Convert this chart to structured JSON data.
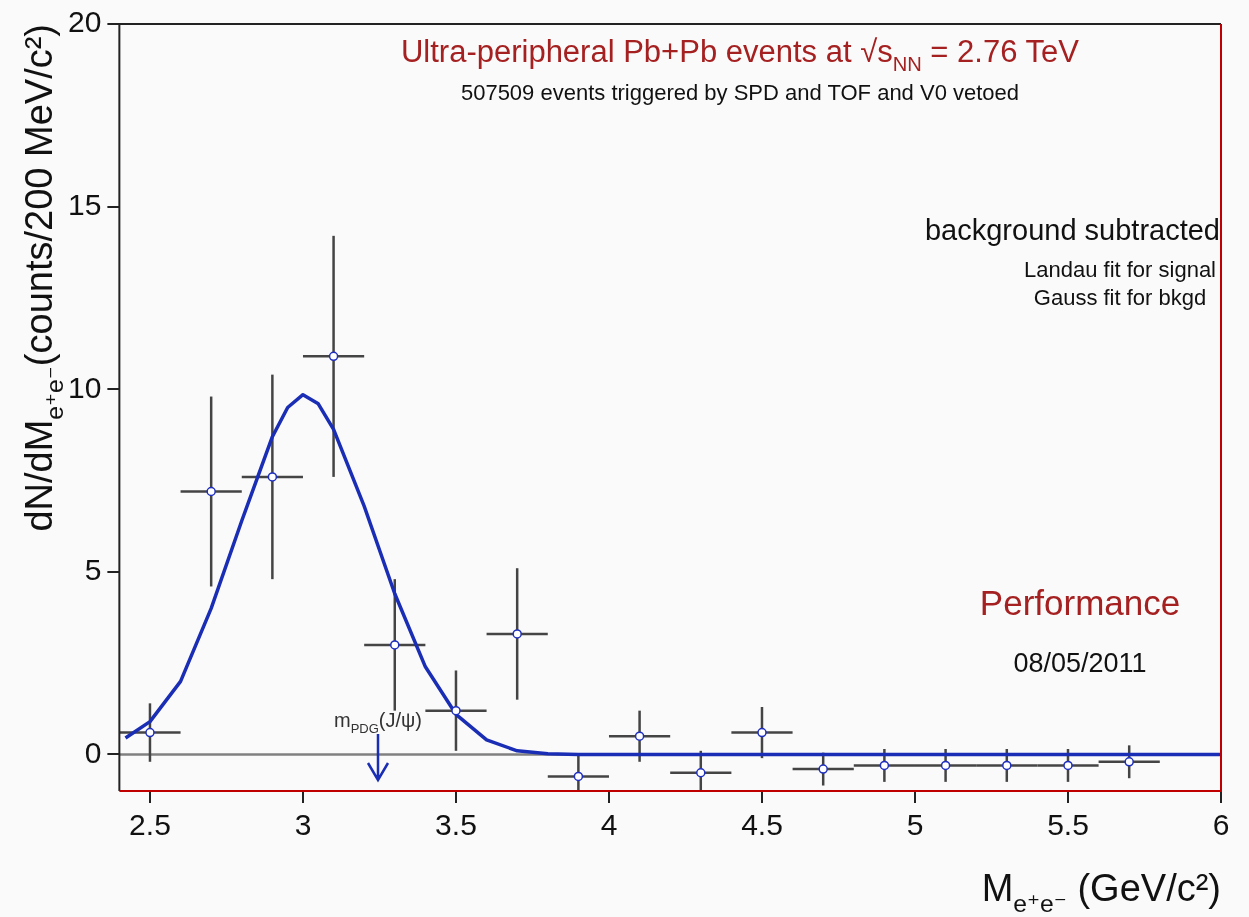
{
  "chart_data": {
    "type": "scatter",
    "title": "Ultra-peripheral Pb+Pb events at √s$_{NN}$ = 2.76 TeV",
    "subtitle": "507509 events triggered by SPD and TOF and V0 vetoed",
    "xlabel": "M$_{e⁺e⁻}$ (GeV/c²)",
    "ylabel": "dN/dM$_{e⁺e⁻}$(counts/200 MeV/c²)",
    "annotations": [
      "background subtracted",
      "Landau fit for signal",
      "Gauss fit for bkgd",
      "Performance",
      "08/05/2011",
      "m$_{PDG}$(J/ψ)"
    ],
    "x": [
      2.5,
      2.7,
      2.9,
      3.1,
      3.3,
      3.5,
      3.7,
      3.9,
      4.1,
      4.3,
      4.5,
      4.7,
      4.9,
      5.1,
      5.3,
      5.5,
      5.7
    ],
    "series": [
      {
        "type": "scatter",
        "color": "#1f2fbf",
        "marker": "circle",
        "values": [
          0.6,
          7.2,
          7.6,
          10.9,
          3.0,
          1.2,
          3.3,
          -0.6,
          0.5,
          -0.5,
          0.6,
          -0.4,
          -0.3,
          -0.3,
          -0.3,
          -0.3,
          -0.2
        ],
        "errors": [
          0.8,
          2.6,
          2.8,
          3.3,
          1.8,
          1.1,
          1.8,
          [
            -1,
            0
          ],
          0.7,
          [
            -1,
            0.1
          ],
          0.7,
          0.45,
          0.45,
          0.45,
          0.45,
          0.45,
          0.45
        ],
        "xerrors": [
          0.1,
          0.1,
          0.1,
          0.1,
          0.1,
          0.1,
          0.1,
          0.1,
          0.1,
          0.1,
          0.1,
          0.1,
          0.1,
          0.1,
          0.1,
          0.1,
          0.1
        ]
      },
      {
        "type": "line",
        "color": "#1a2db5",
        "marker": "none",
        "x": [
          2.42,
          2.5,
          2.6,
          2.7,
          2.8,
          2.9,
          2.95,
          3.0,
          3.05,
          3.1,
          3.2,
          3.3,
          3.4,
          3.5,
          3.6,
          3.7,
          3.8,
          3.9,
          6.0
        ],
        "values": [
          0.45,
          0.9,
          2.0,
          4.0,
          6.4,
          8.7,
          9.5,
          9.85,
          9.6,
          8.9,
          6.8,
          4.4,
          2.4,
          1.1,
          0.4,
          0.1,
          0.02,
          0,
          0
        ]
      }
    ],
    "xlim": [
      2.4,
      6
    ],
    "xticks": [
      2.5,
      3,
      3.5,
      4,
      4.5,
      5,
      5.5,
      6
    ],
    "ylim": [
      -1,
      20
    ],
    "yticks": [
      0,
      5,
      10,
      15,
      20
    ],
    "ref_lines": [
      {
        "axis": "y",
        "value": 0,
        "color": "#808080"
      }
    ],
    "grid": false,
    "legend": false
  }
}
